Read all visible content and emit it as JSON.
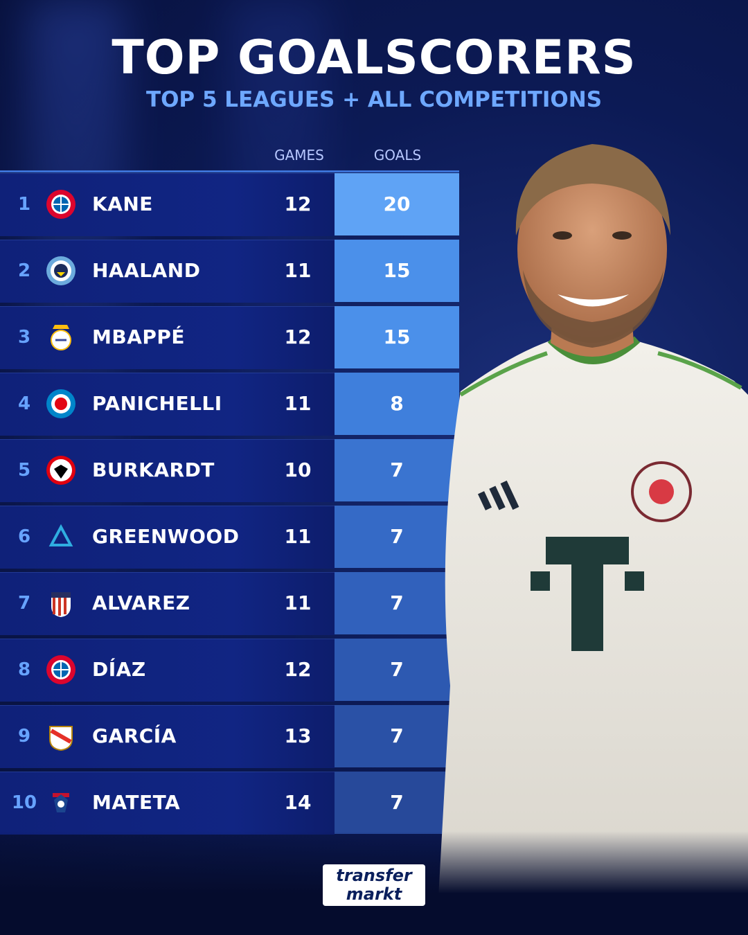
{
  "title": "TOP GOALSCORERS",
  "subtitle": "TOP 5 LEAGUES + ALL COMPETITIONS",
  "columns": {
    "games": "GAMES",
    "goals": "GOALS"
  },
  "rows": [
    {
      "rank": "1",
      "name": "KANE",
      "games": "12",
      "goals": "20",
      "club_icon": "bayern-munich-crest-icon",
      "cell_color": "#5fa3f5"
    },
    {
      "rank": "2",
      "name": "HAALAND",
      "games": "11",
      "goals": "15",
      "club_icon": "manchester-city-crest-icon",
      "cell_color": "#4b90ea"
    },
    {
      "rank": "3",
      "name": "MBAPPÉ",
      "games": "12",
      "goals": "15",
      "club_icon": "real-madrid-crest-icon",
      "cell_color": "#4b90ea"
    },
    {
      "rank": "4",
      "name": "PANICHELLI",
      "games": "11",
      "goals": "8",
      "club_icon": "strasbourg-crest-icon",
      "cell_color": "#3f7fdc"
    },
    {
      "rank": "5",
      "name": "BURKARDT",
      "games": "10",
      "goals": "7",
      "club_icon": "eintracht-frankfurt-crest-icon",
      "cell_color": "#3a74d0"
    },
    {
      "rank": "6",
      "name": "GREENWOOD",
      "games": "11",
      "goals": "7",
      "club_icon": "marseille-crest-icon",
      "cell_color": "#356ac6"
    },
    {
      "rank": "7",
      "name": "ALVAREZ",
      "games": "11",
      "goals": "7",
      "club_icon": "atletico-madrid-crest-icon",
      "cell_color": "#3161bc"
    },
    {
      "rank": "8",
      "name": "DÍAZ",
      "games": "12",
      "goals": "7",
      "club_icon": "bayern-munich-crest-icon",
      "cell_color": "#2d59b1"
    },
    {
      "rank": "9",
      "name": "GARCÍA",
      "games": "13",
      "goals": "7",
      "club_icon": "rayo-vallecano-crest-icon",
      "cell_color": "#2a51a6"
    },
    {
      "rank": "10",
      "name": "MATETA",
      "games": "14",
      "goals": "7",
      "club_icon": "crystal-palace-crest-icon",
      "cell_color": "#27499a"
    }
  ],
  "player_photo": {
    "jersey_mark": "T"
  },
  "brand": {
    "line1": "transfer",
    "line2": "markt"
  }
}
